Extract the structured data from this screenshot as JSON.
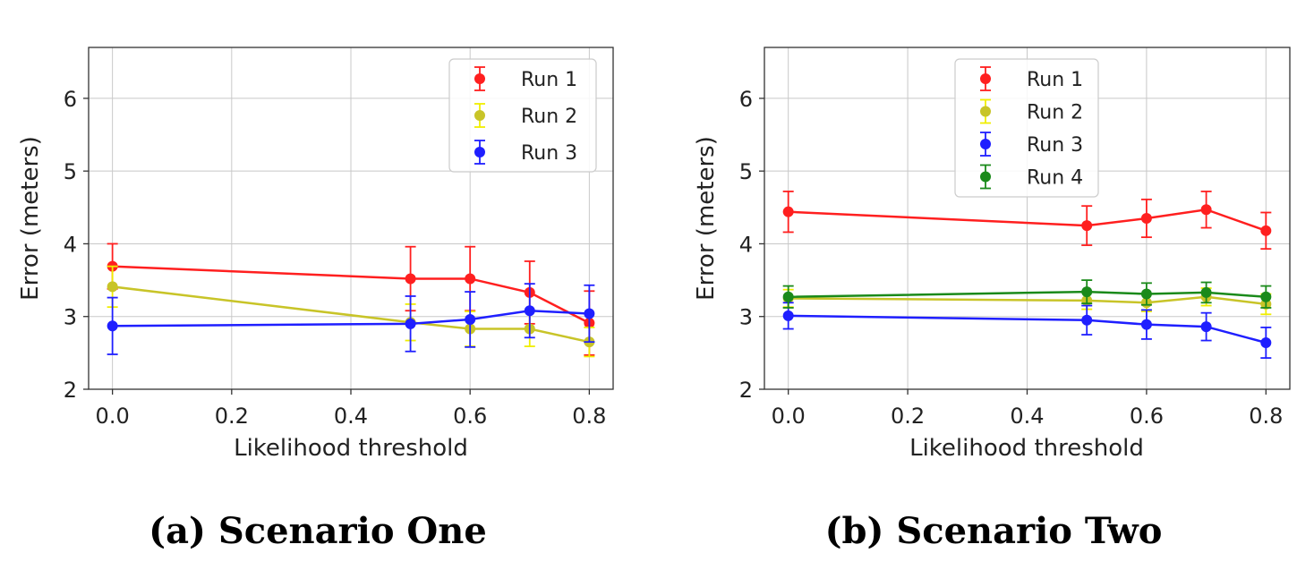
{
  "chart_data": [
    {
      "type": "line",
      "caption": "(a) Scenario One",
      "xlabel": "Likelihood threshold",
      "ylabel": "Error (meters)",
      "xlim": [
        -0.04,
        0.84
      ],
      "ylim": [
        2,
        6.7
      ],
      "xticks": [
        0.0,
        0.2,
        0.4,
        0.6,
        0.8
      ],
      "xtick_labels": [
        "0.0",
        "0.2",
        "0.4",
        "0.6",
        "0.8"
      ],
      "yticks": [
        2,
        3,
        4,
        5,
        6
      ],
      "ytick_labels": [
        "2",
        "3",
        "4",
        "5",
        "6"
      ],
      "grid": true,
      "legend": "top-right",
      "series": [
        {
          "name": "Run 1",
          "color": "#ff1f1f",
          "errcolor": "#ff1f1f",
          "x": [
            0.0,
            0.5,
            0.6,
            0.7,
            0.8
          ],
          "y": [
            3.69,
            3.52,
            3.52,
            3.33,
            2.91
          ],
          "err": [
            0.31,
            0.44,
            0.44,
            0.43,
            0.44
          ]
        },
        {
          "name": "Run 2",
          "color": "#c8c428",
          "errcolor": "#f0ee00",
          "x": [
            0.0,
            0.5,
            0.6,
            0.7,
            0.8
          ],
          "y": [
            3.41,
            2.92,
            2.83,
            2.83,
            2.65
          ],
          "err": [
            0.28,
            0.25,
            0.24,
            0.24,
            0.2
          ]
        },
        {
          "name": "Run 3",
          "color": "#1f1fff",
          "errcolor": "#1f1fff",
          "x": [
            0.0,
            0.5,
            0.6,
            0.7,
            0.8
          ],
          "y": [
            2.87,
            2.9,
            2.96,
            3.08,
            3.04
          ],
          "err": [
            0.39,
            0.38,
            0.38,
            0.37,
            0.39
          ]
        }
      ]
    },
    {
      "type": "line",
      "caption": "(b) Scenario Two",
      "xlabel": "Likelihood threshold",
      "ylabel": "Error (meters)",
      "xlim": [
        -0.04,
        0.84
      ],
      "ylim": [
        2,
        6.7
      ],
      "xticks": [
        0.0,
        0.2,
        0.4,
        0.6,
        0.8
      ],
      "xtick_labels": [
        "0.0",
        "0.2",
        "0.4",
        "0.6",
        "0.8"
      ],
      "yticks": [
        2,
        3,
        4,
        5,
        6
      ],
      "ytick_labels": [
        "2",
        "3",
        "4",
        "5",
        "6"
      ],
      "grid": true,
      "legend": "top-center",
      "series": [
        {
          "name": "Run 1",
          "color": "#ff1f1f",
          "errcolor": "#ff1f1f",
          "x": [
            0.0,
            0.5,
            0.6,
            0.7,
            0.8
          ],
          "y": [
            4.44,
            4.25,
            4.35,
            4.47,
            4.18
          ],
          "err": [
            0.28,
            0.27,
            0.26,
            0.25,
            0.25
          ]
        },
        {
          "name": "Run 2",
          "color": "#c8c428",
          "errcolor": "#f0ee00",
          "x": [
            0.0,
            0.5,
            0.6,
            0.7,
            0.8
          ],
          "y": [
            3.25,
            3.22,
            3.19,
            3.27,
            3.17
          ],
          "err": [
            0.12,
            0.12,
            0.12,
            0.12,
            0.14
          ]
        },
        {
          "name": "Run 3",
          "color": "#1f1fff",
          "errcolor": "#1f1fff",
          "x": [
            0.0,
            0.5,
            0.6,
            0.7,
            0.8
          ],
          "y": [
            3.01,
            2.95,
            2.89,
            2.86,
            2.64
          ],
          "err": [
            0.18,
            0.2,
            0.2,
            0.19,
            0.21
          ]
        },
        {
          "name": "Run 4",
          "color": "#1a8a1a",
          "errcolor": "#1a8a1a",
          "x": [
            0.0,
            0.5,
            0.6,
            0.7,
            0.8
          ],
          "y": [
            3.27,
            3.34,
            3.31,
            3.33,
            3.27
          ],
          "err": [
            0.15,
            0.16,
            0.15,
            0.14,
            0.15
          ]
        }
      ]
    }
  ]
}
